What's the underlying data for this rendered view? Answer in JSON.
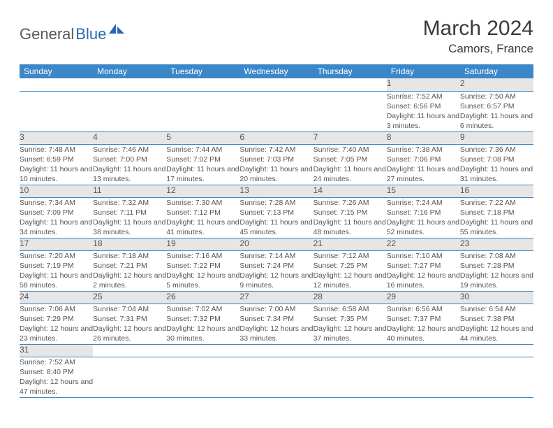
{
  "logo": {
    "text1": "General",
    "text2": "Blue"
  },
  "title": "March 2024",
  "location": "Camors, France",
  "colors": {
    "header_bg": "#3b87c8",
    "header_fg": "#ffffff",
    "daynum_bg": "#e6e6e6",
    "text": "#555555",
    "row_border": "#3b87c8",
    "logo_gray": "#5a5a5a",
    "logo_blue": "#2968b0"
  },
  "weekdays": [
    "Sunday",
    "Monday",
    "Tuesday",
    "Wednesday",
    "Thursday",
    "Friday",
    "Saturday"
  ],
  "weeks": [
    [
      null,
      null,
      null,
      null,
      null,
      {
        "n": "1",
        "sr": "7:52 AM",
        "ss": "6:56 PM",
        "dl": "11 hours and 3 minutes."
      },
      {
        "n": "2",
        "sr": "7:50 AM",
        "ss": "6:57 PM",
        "dl": "11 hours and 6 minutes."
      }
    ],
    [
      {
        "n": "3",
        "sr": "7:48 AM",
        "ss": "6:59 PM",
        "dl": "11 hours and 10 minutes."
      },
      {
        "n": "4",
        "sr": "7:46 AM",
        "ss": "7:00 PM",
        "dl": "11 hours and 13 minutes."
      },
      {
        "n": "5",
        "sr": "7:44 AM",
        "ss": "7:02 PM",
        "dl": "11 hours and 17 minutes."
      },
      {
        "n": "6",
        "sr": "7:42 AM",
        "ss": "7:03 PM",
        "dl": "11 hours and 20 minutes."
      },
      {
        "n": "7",
        "sr": "7:40 AM",
        "ss": "7:05 PM",
        "dl": "11 hours and 24 minutes."
      },
      {
        "n": "8",
        "sr": "7:38 AM",
        "ss": "7:06 PM",
        "dl": "11 hours and 27 minutes."
      },
      {
        "n": "9",
        "sr": "7:36 AM",
        "ss": "7:08 PM",
        "dl": "11 hours and 31 minutes."
      }
    ],
    [
      {
        "n": "10",
        "sr": "7:34 AM",
        "ss": "7:09 PM",
        "dl": "11 hours and 34 minutes."
      },
      {
        "n": "11",
        "sr": "7:32 AM",
        "ss": "7:11 PM",
        "dl": "11 hours and 38 minutes."
      },
      {
        "n": "12",
        "sr": "7:30 AM",
        "ss": "7:12 PM",
        "dl": "11 hours and 41 minutes."
      },
      {
        "n": "13",
        "sr": "7:28 AM",
        "ss": "7:13 PM",
        "dl": "11 hours and 45 minutes."
      },
      {
        "n": "14",
        "sr": "7:26 AM",
        "ss": "7:15 PM",
        "dl": "11 hours and 48 minutes."
      },
      {
        "n": "15",
        "sr": "7:24 AM",
        "ss": "7:16 PM",
        "dl": "11 hours and 52 minutes."
      },
      {
        "n": "16",
        "sr": "7:22 AM",
        "ss": "7:18 PM",
        "dl": "11 hours and 55 minutes."
      }
    ],
    [
      {
        "n": "17",
        "sr": "7:20 AM",
        "ss": "7:19 PM",
        "dl": "11 hours and 58 minutes."
      },
      {
        "n": "18",
        "sr": "7:18 AM",
        "ss": "7:21 PM",
        "dl": "12 hours and 2 minutes."
      },
      {
        "n": "19",
        "sr": "7:16 AM",
        "ss": "7:22 PM",
        "dl": "12 hours and 5 minutes."
      },
      {
        "n": "20",
        "sr": "7:14 AM",
        "ss": "7:24 PM",
        "dl": "12 hours and 9 minutes."
      },
      {
        "n": "21",
        "sr": "7:12 AM",
        "ss": "7:25 PM",
        "dl": "12 hours and 12 minutes."
      },
      {
        "n": "22",
        "sr": "7:10 AM",
        "ss": "7:27 PM",
        "dl": "12 hours and 16 minutes."
      },
      {
        "n": "23",
        "sr": "7:08 AM",
        "ss": "7:28 PM",
        "dl": "12 hours and 19 minutes."
      }
    ],
    [
      {
        "n": "24",
        "sr": "7:06 AM",
        "ss": "7:29 PM",
        "dl": "12 hours and 23 minutes."
      },
      {
        "n": "25",
        "sr": "7:04 AM",
        "ss": "7:31 PM",
        "dl": "12 hours and 26 minutes."
      },
      {
        "n": "26",
        "sr": "7:02 AM",
        "ss": "7:32 PM",
        "dl": "12 hours and 30 minutes."
      },
      {
        "n": "27",
        "sr": "7:00 AM",
        "ss": "7:34 PM",
        "dl": "12 hours and 33 minutes."
      },
      {
        "n": "28",
        "sr": "6:58 AM",
        "ss": "7:35 PM",
        "dl": "12 hours and 37 minutes."
      },
      {
        "n": "29",
        "sr": "6:56 AM",
        "ss": "7:37 PM",
        "dl": "12 hours and 40 minutes."
      },
      {
        "n": "30",
        "sr": "6:54 AM",
        "ss": "7:38 PM",
        "dl": "12 hours and 44 minutes."
      }
    ],
    [
      {
        "n": "31",
        "sr": "7:52 AM",
        "ss": "8:40 PM",
        "dl": "12 hours and 47 minutes."
      },
      null,
      null,
      null,
      null,
      null,
      null
    ]
  ],
  "labels": {
    "sunrise": "Sunrise: ",
    "sunset": "Sunset: ",
    "daylight": "Daylight: "
  }
}
